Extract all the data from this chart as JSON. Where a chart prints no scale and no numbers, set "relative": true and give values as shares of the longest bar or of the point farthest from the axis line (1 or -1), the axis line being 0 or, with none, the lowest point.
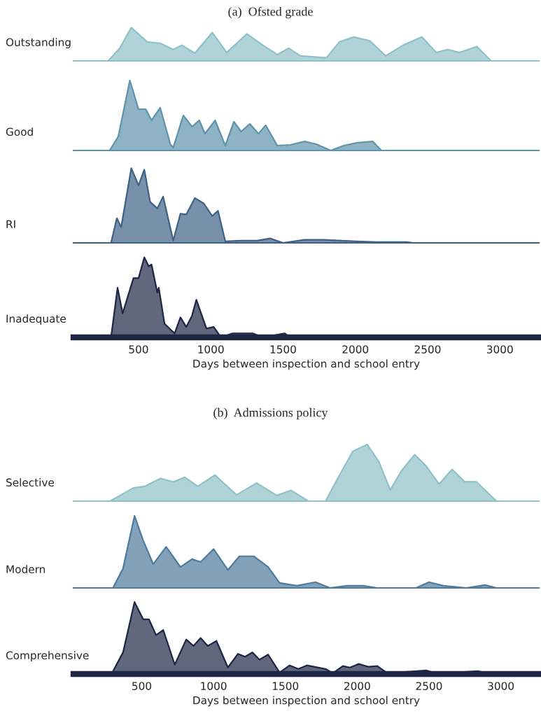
{
  "chart_data": [
    {
      "type": "area",
      "title": "(a)  Ofsted grade",
      "ylabel": "Outstanding",
      "relative": true,
      "tick_labels": false,
      "xlim": [
        50,
        3270
      ],
      "x": [
        290,
        370,
        450,
        560,
        650,
        740,
        800,
        890,
        1010,
        1110,
        1250,
        1360,
        1460,
        1540,
        1620,
        1800,
        1890,
        1990,
        2100,
        2210,
        2330,
        2460,
        2560,
        2640,
        2720,
        2840,
        2940
      ],
      "series": [
        {
          "color": "#8fc1c8",
          "values": [
            0,
            0.38,
            1,
            0.57,
            0.53,
            0.34,
            0.47,
            0.23,
            0.85,
            0.25,
            0.81,
            0.47,
            0.19,
            0.38,
            0.15,
            0.09,
            0.57,
            0.72,
            0.6,
            0.15,
            0.47,
            0.72,
            0.25,
            0.34,
            0.25,
            0.43,
            0
          ]
        }
      ]
    },
    {
      "type": "area",
      "ylabel": "Good",
      "relative": true,
      "tick_labels": false,
      "xlim": [
        50,
        3270
      ],
      "x": [
        300,
        360,
        440,
        500,
        550,
        590,
        650,
        720,
        740,
        810,
        870,
        920,
        960,
        1030,
        1100,
        1160,
        1210,
        1270,
        1330,
        1380,
        1460,
        1550,
        1650,
        1730,
        1830,
        1920,
        2010,
        2120,
        2180
      ],
      "series": [
        {
          "color": "#5e93ab",
          "values": [
            0,
            0.2,
            1,
            0.59,
            0.59,
            0.43,
            0.61,
            0.09,
            0.04,
            0.5,
            0.34,
            0.43,
            0.24,
            0.43,
            0.07,
            0.41,
            0.27,
            0.38,
            0.24,
            0.36,
            0.07,
            0.08,
            0.13,
            0.09,
            0,
            0.07,
            0.11,
            0.13,
            0
          ]
        }
      ]
    },
    {
      "type": "area",
      "ylabel": "RI",
      "relative": true,
      "tick_labels": false,
      "xlim": [
        50,
        3270
      ],
      "x": [
        310,
        350,
        380,
        450,
        500,
        540,
        580,
        630,
        670,
        740,
        790,
        830,
        890,
        950,
        1010,
        1050,
        1100,
        1200,
        1320,
        1410,
        1500,
        1640,
        1780,
        2010,
        2150,
        2360,
        2400
      ],
      "series": [
        {
          "color": "#3e6185",
          "values": [
            0,
            0.33,
            0.21,
            1,
            0.77,
            0.98,
            0.55,
            0.46,
            0.62,
            0.03,
            0.39,
            0.38,
            0.6,
            0.53,
            0.36,
            0.43,
            0.02,
            0.03,
            0.03,
            0.06,
            0,
            0.04,
            0.04,
            0.02,
            0.01,
            0.01,
            0
          ]
        }
      ]
    },
    {
      "type": "area",
      "ylabel": "Inadequate",
      "xlabel": "Days between inspection and school entry",
      "relative": true,
      "tick_labels": "x",
      "xlim": [
        50,
        3270
      ],
      "xticks": [
        500,
        1000,
        1500,
        2000,
        2500,
        3000
      ],
      "x": [
        310,
        355,
        390,
        465,
        500,
        540,
        570,
        590,
        630,
        640,
        680,
        720,
        750,
        790,
        830,
        870,
        900,
        970,
        1020,
        1070,
        1150,
        1210,
        1290,
        1360,
        1510,
        1550
      ],
      "series": [
        {
          "color": "#1e2646",
          "values": [
            0,
            0.62,
            0.3,
            0.74,
            0.74,
            1,
            0.89,
            0.91,
            0.56,
            0.62,
            0.17,
            0.1,
            0.05,
            0.25,
            0.13,
            0.27,
            0.47,
            0.11,
            0.13,
            0,
            0.05,
            0.05,
            0.05,
            0,
            0.05,
            0
          ]
        }
      ]
    },
    {
      "type": "area",
      "title": "(b)  Admissions policy",
      "ylabel": "Selective",
      "relative": true,
      "tick_labels": false,
      "xlim": [
        25,
        3265
      ],
      "x": [
        280,
        440,
        520,
        630,
        720,
        800,
        890,
        1010,
        1160,
        1300,
        1440,
        1540,
        1660,
        1780,
        1860,
        1970,
        2070,
        2150,
        2230,
        2310,
        2400,
        2480,
        2570,
        2660,
        2750,
        2830,
        2970
      ],
      "series": [
        {
          "color": "#8fc1c8",
          "values": [
            0,
            0.23,
            0.26,
            0.4,
            0.34,
            0.42,
            0.26,
            0.46,
            0.11,
            0.32,
            0.1,
            0.19,
            0,
            0,
            0.38,
            0.88,
            1,
            0.7,
            0.2,
            0.54,
            0.82,
            0.62,
            0.3,
            0.56,
            0.34,
            0.34,
            0
          ]
        }
      ]
    },
    {
      "type": "area",
      "ylabel": "Modern",
      "relative": true,
      "tick_labels": false,
      "xlim": [
        25,
        3265
      ],
      "x": [
        300,
        370,
        450,
        510,
        580,
        670,
        770,
        850,
        910,
        1000,
        1100,
        1180,
        1280,
        1380,
        1460,
        1580,
        1710,
        1810,
        1930,
        2040,
        2140,
        2410,
        2500,
        2600,
        2760,
        2890,
        2970
      ],
      "series": [
        {
          "color": "#4e7b9d",
          "values": [
            0,
            0.27,
            1,
            0.66,
            0.33,
            0.57,
            0.29,
            0.4,
            0.36,
            0.54,
            0.25,
            0.44,
            0.44,
            0.29,
            0.07,
            0.03,
            0.08,
            0,
            0.03,
            0.03,
            0,
            0,
            0.08,
            0.03,
            0,
            0.04,
            0
          ]
        }
      ]
    },
    {
      "type": "area",
      "ylabel": "Comprehensive",
      "xlabel": "Days between inspection and school entry",
      "relative": true,
      "tick_labels": "x",
      "xlim": [
        25,
        3265
      ],
      "xticks": [
        500,
        1000,
        1500,
        2000,
        2500,
        3000
      ],
      "x": [
        290,
        370,
        450,
        510,
        550,
        600,
        650,
        730,
        810,
        860,
        910,
        960,
        1020,
        1100,
        1170,
        1220,
        1270,
        1320,
        1380,
        1460,
        1530,
        1590,
        1650,
        1780,
        1830,
        1900,
        1950,
        2010,
        2080,
        2140,
        2210,
        2350,
        2480,
        2550,
        2690,
        2840,
        2930
      ],
      "series": [
        {
          "color": "#1e2646",
          "values": [
            0,
            0.3,
            1,
            0.76,
            0.76,
            0.54,
            0.61,
            0.13,
            0.48,
            0.39,
            0.5,
            0.39,
            0.46,
            0.09,
            0.28,
            0.24,
            0.3,
            0.2,
            0.27,
            0.02,
            0.12,
            0.07,
            0.12,
            0.07,
            0.01,
            0.11,
            0.09,
            0.14,
            0.1,
            0.11,
            0.01,
            0.03,
            0.05,
            0.01,
            0.02,
            0.04,
            0
          ]
        }
      ]
    }
  ]
}
